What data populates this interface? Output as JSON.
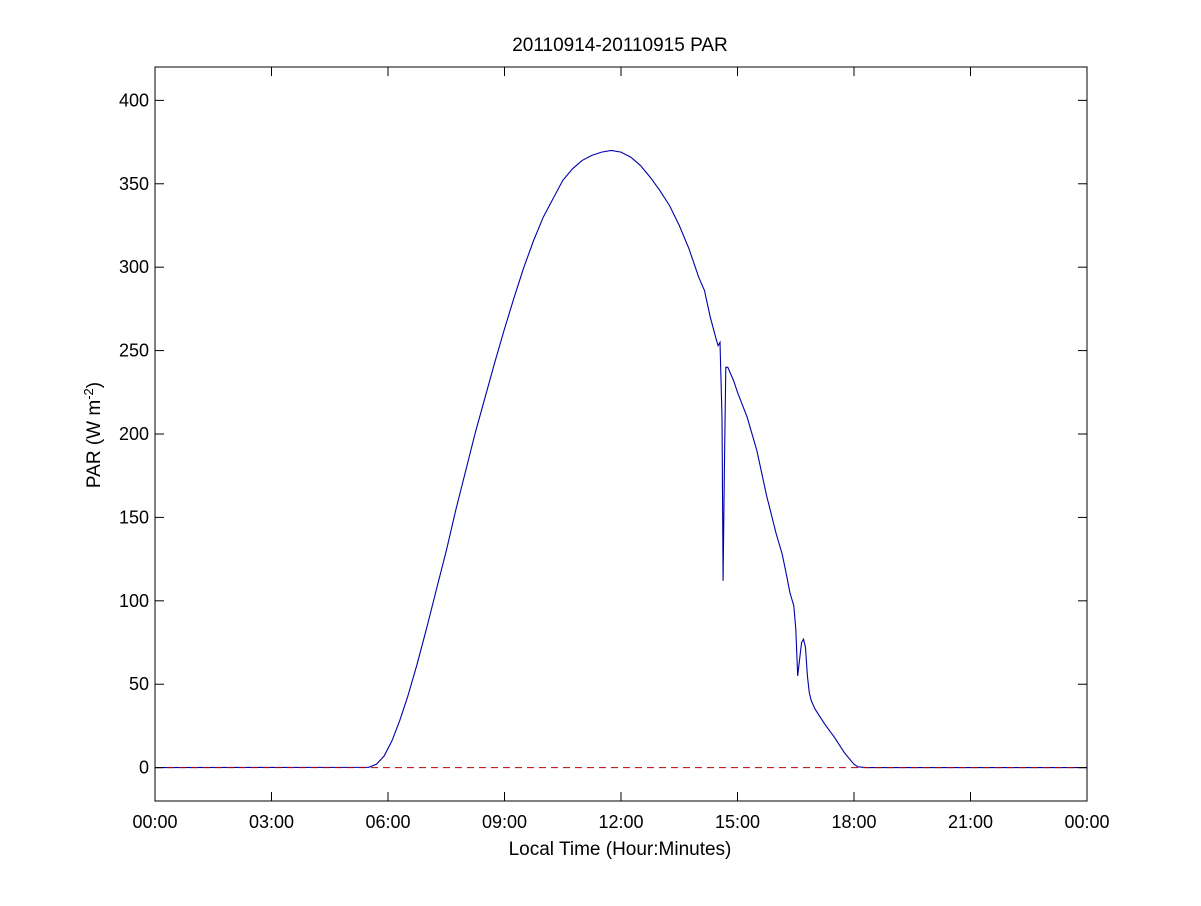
{
  "chart_data": {
    "type": "line",
    "title": "20110914-20110915 PAR",
    "xlabel": "Local Time (Hour:Minutes)",
    "ylabel_main": "PAR (W m",
    "ylabel_sup": "-2",
    "ylabel_close": ")",
    "xlim_hours": [
      0,
      24
    ],
    "ylim": [
      -20,
      420
    ],
    "xticks": [
      {
        "hour": 0,
        "label": "00:00"
      },
      {
        "hour": 3,
        "label": "03:00"
      },
      {
        "hour": 6,
        "label": "06:00"
      },
      {
        "hour": 9,
        "label": "09:00"
      },
      {
        "hour": 12,
        "label": "12:00"
      },
      {
        "hour": 15,
        "label": "15:00"
      },
      {
        "hour": 18,
        "label": "18:00"
      },
      {
        "hour": 21,
        "label": "21:00"
      },
      {
        "hour": 24,
        "label": "00:00"
      }
    ],
    "yticks": [
      0,
      50,
      100,
      150,
      200,
      250,
      300,
      350,
      400
    ],
    "grid": false,
    "series": [
      {
        "color": "#0000a8",
        "style": "solid",
        "points": [
          [
            0,
            0
          ],
          [
            5.5,
            0.2
          ],
          [
            5.7,
            2
          ],
          [
            5.9,
            7
          ],
          [
            6.1,
            16
          ],
          [
            6.3,
            28
          ],
          [
            6.5,
            42
          ],
          [
            6.75,
            62
          ],
          [
            7.0,
            84
          ],
          [
            7.25,
            107
          ],
          [
            7.5,
            130
          ],
          [
            7.75,
            155
          ],
          [
            8.0,
            178
          ],
          [
            8.25,
            201
          ],
          [
            8.5,
            222
          ],
          [
            8.75,
            243
          ],
          [
            9.0,
            263
          ],
          [
            9.25,
            282
          ],
          [
            9.5,
            300
          ],
          [
            9.75,
            316
          ],
          [
            10.0,
            330
          ],
          [
            10.25,
            341
          ],
          [
            10.5,
            352
          ],
          [
            10.75,
            359
          ],
          [
            11.0,
            364
          ],
          [
            11.25,
            367
          ],
          [
            11.5,
            369
          ],
          [
            11.75,
            370
          ],
          [
            12.0,
            369
          ],
          [
            12.25,
            366
          ],
          [
            12.5,
            361
          ],
          [
            12.75,
            354
          ],
          [
            13.0,
            346
          ],
          [
            13.25,
            337
          ],
          [
            13.5,
            325
          ],
          [
            13.75,
            311
          ],
          [
            14.0,
            294
          ],
          [
            14.15,
            286
          ],
          [
            14.3,
            270
          ],
          [
            14.45,
            257
          ],
          [
            14.5,
            253
          ],
          [
            14.55,
            255
          ],
          [
            14.6,
            210
          ],
          [
            14.63,
            112
          ],
          [
            14.66,
            175
          ],
          [
            14.7,
            240
          ],
          [
            14.75,
            240
          ],
          [
            14.9,
            232
          ],
          [
            15.0,
            225
          ],
          [
            15.25,
            210
          ],
          [
            15.5,
            190
          ],
          [
            15.75,
            163
          ],
          [
            16.0,
            140
          ],
          [
            16.15,
            128
          ],
          [
            16.25,
            117
          ],
          [
            16.35,
            105
          ],
          [
            16.45,
            97
          ],
          [
            16.5,
            83
          ],
          [
            16.55,
            55
          ],
          [
            16.6,
            65
          ],
          [
            16.65,
            75
          ],
          [
            16.7,
            77
          ],
          [
            16.75,
            72
          ],
          [
            16.8,
            55
          ],
          [
            16.85,
            45
          ],
          [
            16.9,
            40
          ],
          [
            17.0,
            35
          ],
          [
            17.25,
            26
          ],
          [
            17.5,
            18
          ],
          [
            17.75,
            9
          ],
          [
            18.0,
            2
          ],
          [
            18.1,
            0.5
          ],
          [
            18.3,
            0
          ],
          [
            24,
            0
          ]
        ]
      },
      {
        "color": "#c00000",
        "style": "dashed",
        "points": [
          [
            0,
            0
          ],
          [
            24,
            0
          ]
        ]
      }
    ]
  }
}
